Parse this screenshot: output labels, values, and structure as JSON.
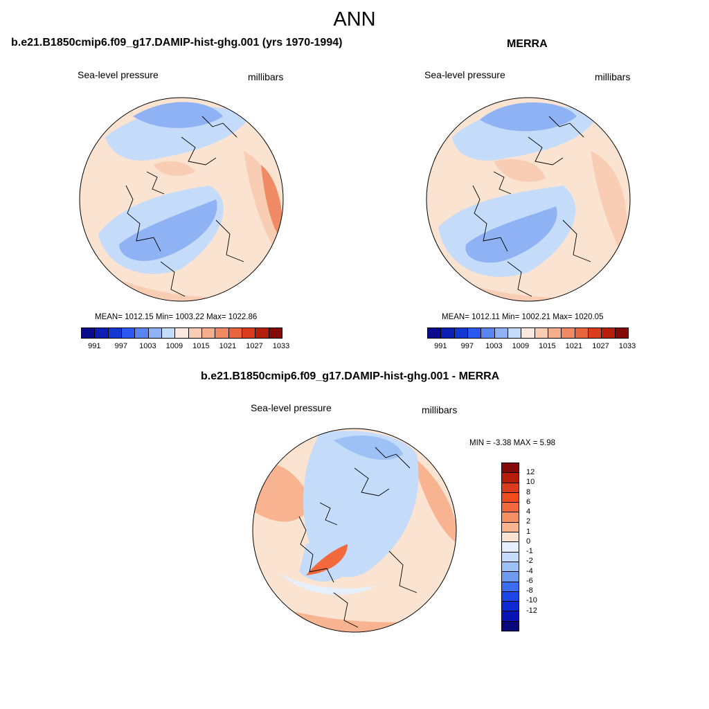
{
  "figure": {
    "title": "ANN"
  },
  "panels": [
    {
      "title": "b.e21.B1850cmip6.f09_g17.DAMIP-hist-ghg.001 (yrs 1970-1994)",
      "left_label": "Sea-level pressure",
      "right_label": "millibars",
      "stats": "MEAN= 1012.15  Min= 1003.22  Max= 1022.86"
    },
    {
      "title": "MERRA",
      "left_label": "Sea-level pressure",
      "right_label": "millibars",
      "stats": "MEAN= 1012.11  Min= 1002.21  Max= 1020.05"
    },
    {
      "title": "b.e21.B1850cmip6.f09_g17.DAMIP-hist-ghg.001 - MERRA",
      "left_label": "Sea-level pressure",
      "right_label": "millibars",
      "stats": "MIN =  -3.38 MAX =   5.98"
    }
  ],
  "abs_colorbar": {
    "colors": [
      "#0a0a8c",
      "#0d1eb4",
      "#1437d2",
      "#2a58f0",
      "#5a84f0",
      "#8fb2f5",
      "#c4dcfa",
      "#fbe9df",
      "#f8cdb4",
      "#f5ae8c",
      "#f08a64",
      "#e8643c",
      "#dc3c1e",
      "#b41e0a",
      "#820a0a"
    ],
    "labels": [
      "991",
      "997",
      "1003",
      "1009",
      "1015",
      "1021",
      "1027",
      "1033"
    ]
  },
  "diff_colorbar": {
    "colors": [
      "#820a0a",
      "#b41e0a",
      "#dc3c1e",
      "#f04c1e",
      "#f26a3c",
      "#f58f64",
      "#f8b491",
      "#fbe3d2",
      "#e6f0fc",
      "#c4dcfa",
      "#9dc1f5",
      "#6f9af0",
      "#3c6cf0",
      "#1e46e6",
      "#0f2ad2",
      "#0a14b4",
      "#08087c"
    ],
    "labels": [
      "12",
      "10",
      "8",
      "6",
      "4",
      "2",
      "1",
      "0",
      "-1",
      "-2",
      "-4",
      "-6",
      "-8",
      "-10",
      "-12"
    ]
  }
}
